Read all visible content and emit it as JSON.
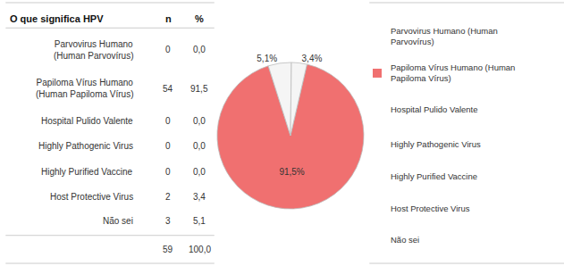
{
  "chart_data": {
    "type": "pie",
    "title": "O que significa HPV",
    "values": [
      91.5,
      5.1,
      3.4
    ],
    "value_labels": [
      "91,5%",
      "5,1%",
      "3,4%"
    ],
    "colors": [
      "#f07070",
      "#f5f5f5",
      "#f5f5f5"
    ],
    "data_labels": true,
    "table": {
      "columns": [
        "n",
        "%"
      ],
      "rows": [
        {
          "label": "Parvovirus Humano\n(Human Parvovírus)",
          "n": "0",
          "pct": "0,0"
        },
        {
          "label": "Papiloma Vírus Humano\n(Human Papiloma Vírus)",
          "n": "54",
          "pct": "91,5"
        },
        {
          "label": "Hospital Pulido Valente",
          "n": "0",
          "pct": "0,0"
        },
        {
          "label": "Highly Pathogenic Virus",
          "n": "0",
          "pct": "0,0"
        },
        {
          "label": "Highly Purified Vaccine",
          "n": "0",
          "pct": "0,0"
        },
        {
          "label": "Host Protective Virus",
          "n": "2",
          "pct": "3,4"
        },
        {
          "label": "Não sei",
          "n": "3",
          "pct": "5,1"
        }
      ],
      "total": {
        "n": "59",
        "pct": "100,0"
      },
      "border_color": "#cccccc"
    },
    "legend_entries": [
      {
        "label": "Parvovirus Humano (Human\nParvovírus)",
        "color": null
      },
      {
        "label": "Papiloma Vírus Humano (Human\nPapiloma Vírus)",
        "color": "#f07070"
      },
      {
        "label": "Hospital Pulido Valente",
        "color": null
      },
      {
        "label": "Highly Pathogenic Virus",
        "color": null
      },
      {
        "label": "Highly Purified Vaccine",
        "color": null
      },
      {
        "label": "Host Protective Virus",
        "color": null
      },
      {
        "label": "Não sei",
        "color": null
      }
    ]
  }
}
